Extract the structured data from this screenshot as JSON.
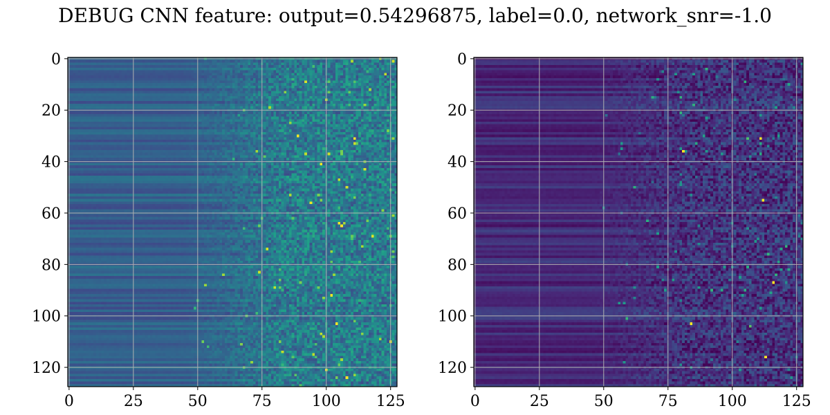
{
  "figure": {
    "suptitle": "DEBUG CNN feature: output=0.54296875, label=0.0, network_snr=-1.0"
  },
  "chart_data": [
    {
      "type": "heatmap",
      "title": "",
      "xlabel": "",
      "ylabel": "",
      "rows": 128,
      "cols": 128,
      "xlim": [
        -0.5,
        127.5
      ],
      "ylim": [
        127.5,
        -0.5
      ],
      "y_axis_inverted": true,
      "xticks": [
        0,
        25,
        50,
        75,
        100,
        125
      ],
      "yticks": [
        0,
        20,
        40,
        60,
        80,
        100,
        120
      ],
      "grid": true,
      "colormap": "viridis",
      "pattern": {
        "description_of_values": "approximate: low, row-banded values in columns 0-55; noisy mid values increasing toward column 127 with sparse bright pixels",
        "left_level": 0.3,
        "right_level": 0.42,
        "noise": 0.16,
        "hot_pixels": [
          [
            106,
            65
          ],
          [
            105,
            64
          ],
          [
            111,
            31
          ],
          [
            98,
            41
          ],
          [
            89,
            30
          ],
          [
            104,
            103
          ],
          [
            100,
            121
          ]
        ]
      }
    },
    {
      "type": "heatmap",
      "title": "",
      "xlabel": "",
      "ylabel": "",
      "rows": 128,
      "cols": 128,
      "xlim": [
        -0.5,
        127.5
      ],
      "ylim": [
        127.5,
        -0.5
      ],
      "y_axis_inverted": true,
      "xticks": [
        0,
        25,
        50,
        75,
        100,
        125
      ],
      "yticks": [
        0,
        20,
        40,
        60,
        80,
        100,
        120
      ],
      "grid": true,
      "colormap": "viridis",
      "pattern": {
        "description_of_values": "approximate: very low, row-banded values in columns 0-55; noisy low values toward column 127 with sparse bright pixels",
        "left_level": 0.12,
        "right_level": 0.15,
        "noise": 0.14,
        "hot_pixels": [
          [
            112,
            55
          ],
          [
            84,
            103
          ],
          [
            111,
            31
          ],
          [
            113,
            116
          ],
          [
            81,
            36
          ],
          [
            116,
            87
          ]
        ]
      }
    }
  ]
}
